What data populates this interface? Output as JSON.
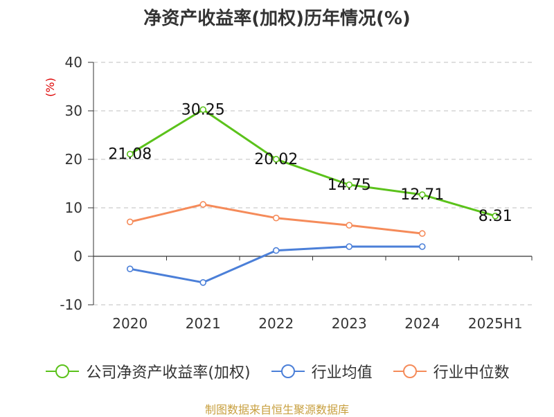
{
  "chart_data": {
    "type": "line",
    "title": "净资产收益率(加权)历年情况(%)",
    "ylabel": "(%)",
    "xlabel": "",
    "categories": [
      "2020",
      "2021",
      "2022",
      "2023",
      "2024",
      "2025H1"
    ],
    "ylim": [
      -10,
      40
    ],
    "yticks": [
      40,
      30,
      20,
      10,
      0,
      -10
    ],
    "grid": "horizontal-dashed",
    "legend_position": "bottom",
    "series": [
      {
        "name": "公司净资产收益率(加权)",
        "color": "#5bc21b",
        "values": [
          21.08,
          30.25,
          20.02,
          14.75,
          12.71,
          8.31
        ],
        "labels": [
          "21.08",
          "30.25",
          "20.02",
          "14.75",
          "12.71",
          "8.31"
        ]
      },
      {
        "name": "行业均值",
        "color": "#4b7fd8",
        "values": [
          -2.6,
          -5.4,
          1.2,
          2.0,
          2.0,
          null
        ]
      },
      {
        "name": "行业中位数",
        "color": "#f58b5a",
        "values": [
          7.1,
          10.7,
          7.9,
          6.4,
          4.7,
          null
        ]
      }
    ]
  },
  "source": "制图数据来自恒生聚源数据库",
  "colors": {
    "axis": "#333333",
    "grid": "#cccccc",
    "ylabel": "#dd0000"
  }
}
